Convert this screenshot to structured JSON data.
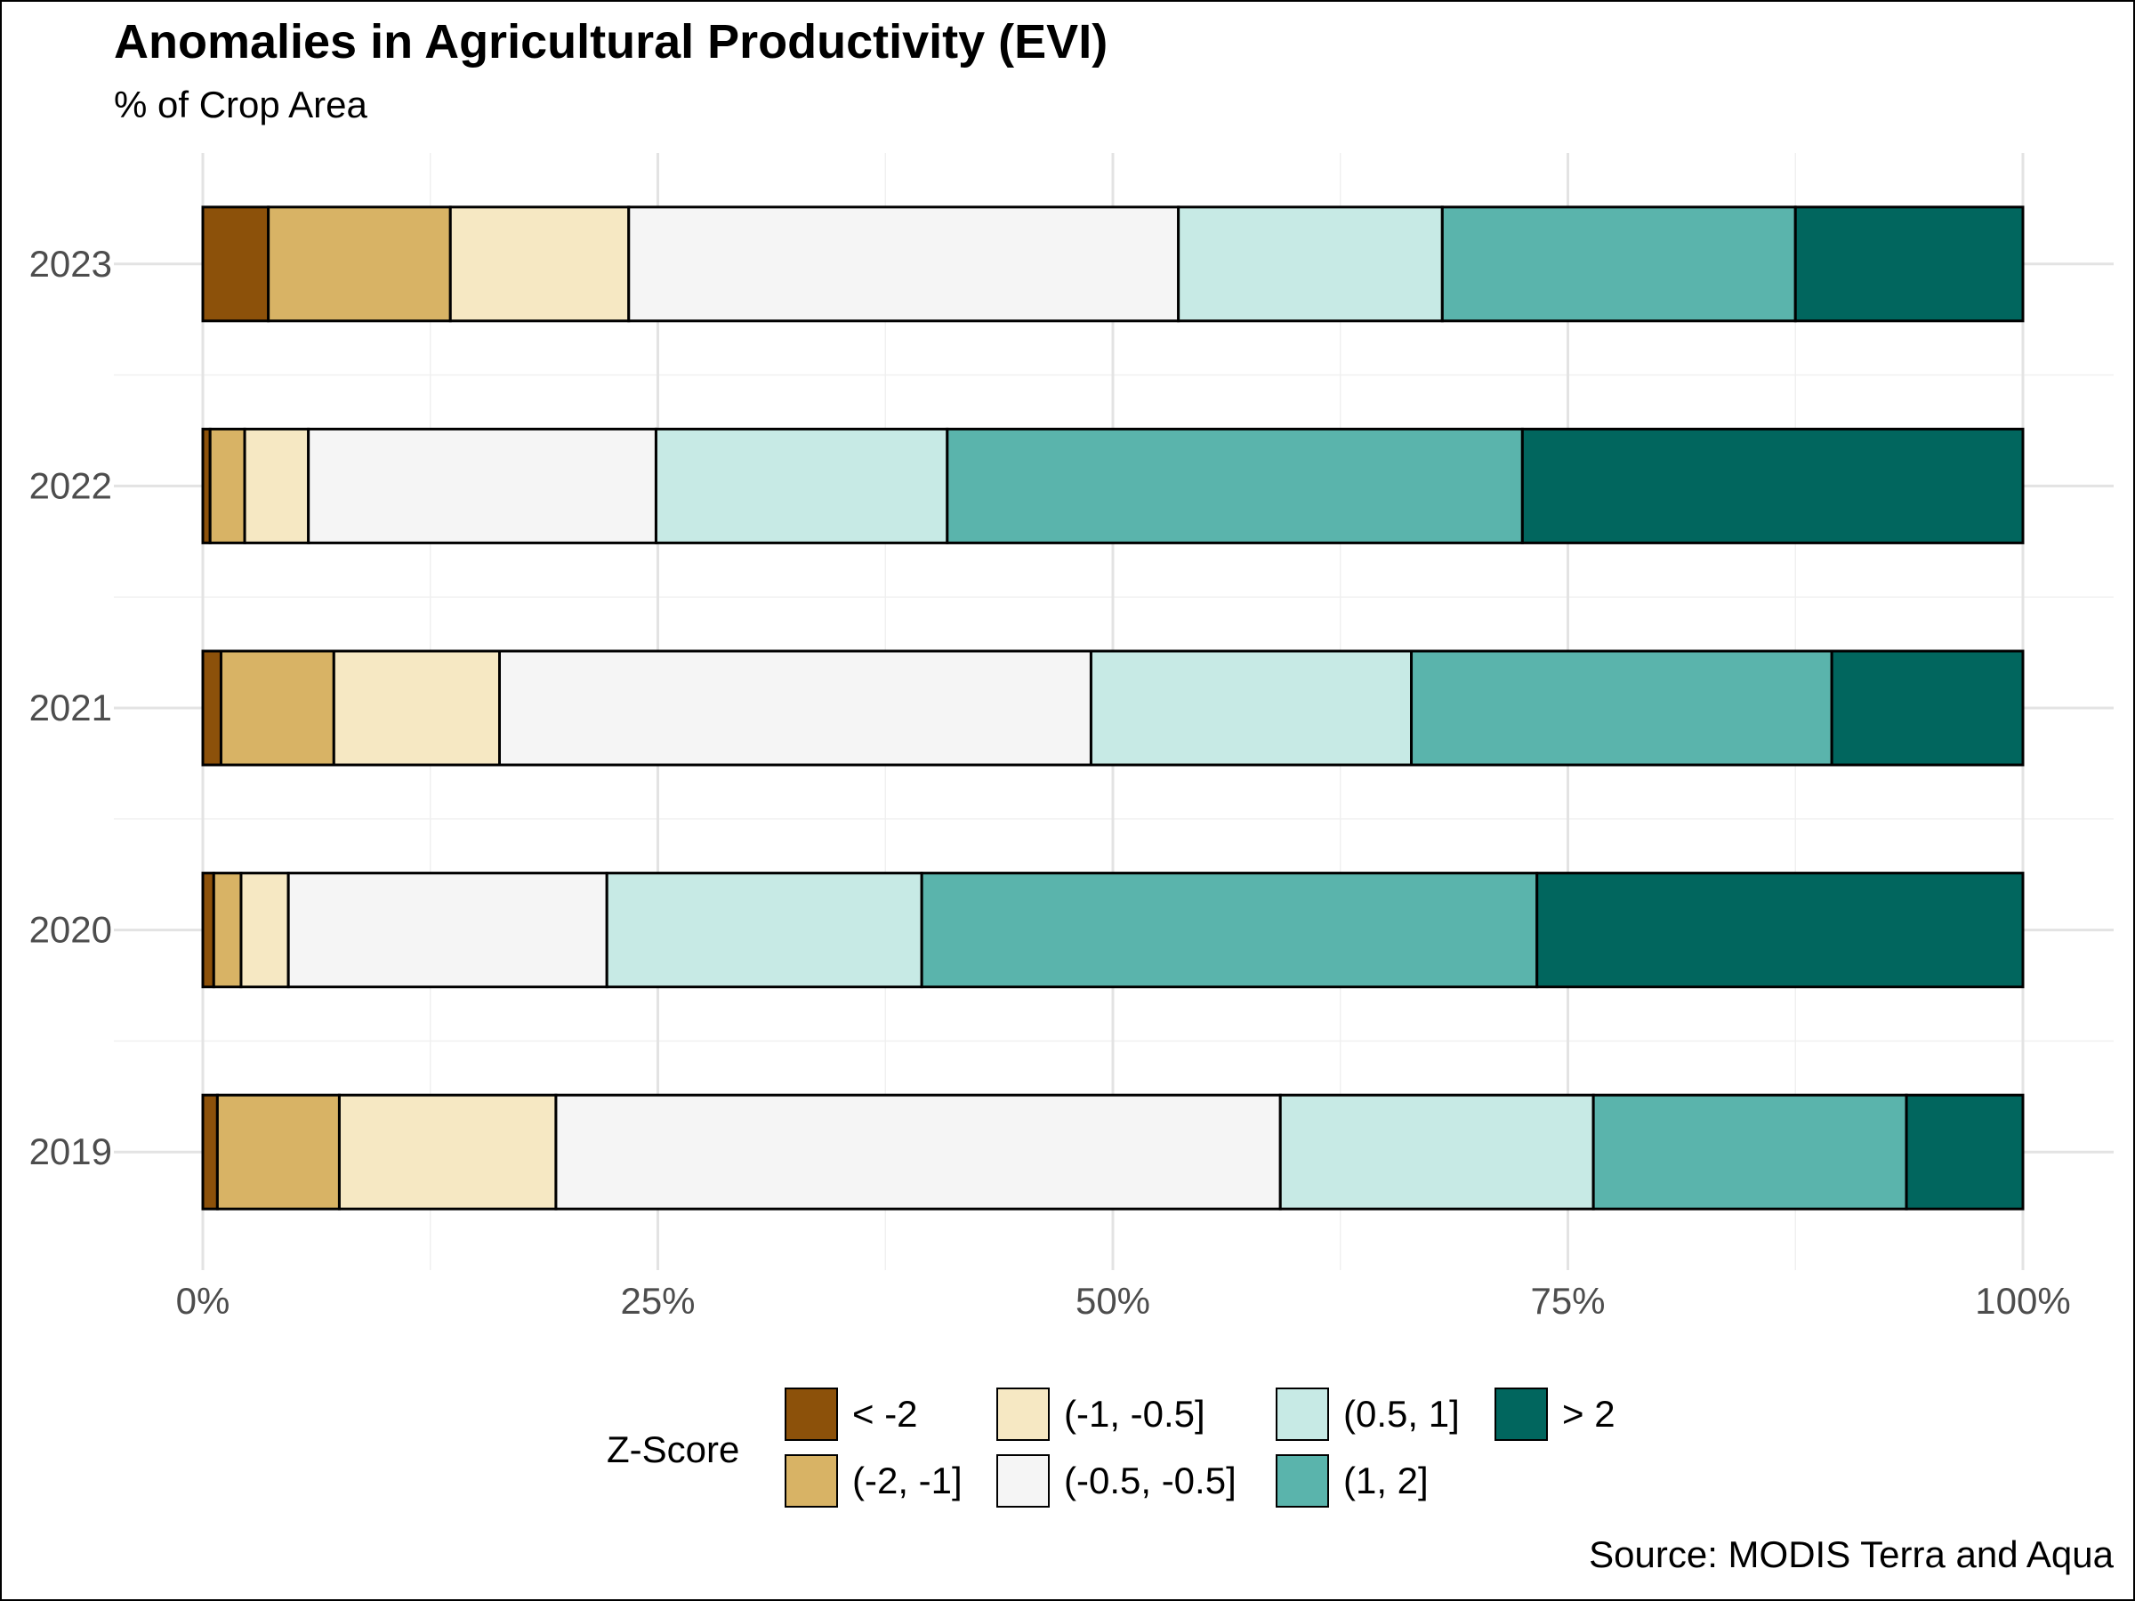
{
  "title": "Anomalies in Agricultural Productivity (EVI)",
  "subtitle": "% of Crop Area",
  "source": "Source: MODIS Terra and Aqua",
  "legend": {
    "title": "Z-Score"
  },
  "chart_data": {
    "type": "bar",
    "orientation": "horizontal",
    "stacked": true,
    "normalized": true,
    "categories": [
      "2019",
      "2020",
      "2021",
      "2022",
      "2023"
    ],
    "series": [
      {
        "name": "< -2",
        "color": "#8C510A",
        "values": [
          0.8,
          0.6,
          1.0,
          0.4,
          3.6
        ]
      },
      {
        "name": "(-2, -1]",
        "color": "#D8B365",
        "values": [
          6.7,
          1.5,
          6.2,
          1.9,
          10.0
        ]
      },
      {
        "name": "(-1, -0.5]",
        "color": "#F6E8C3",
        "values": [
          11.9,
          2.6,
          9.1,
          3.5,
          9.8
        ]
      },
      {
        "name": "(-0.5, -0.5]",
        "color": "#F5F5F5",
        "values": [
          39.8,
          17.5,
          32.5,
          19.1,
          30.2
        ]
      },
      {
        "name": "(0.5, 1]",
        "color": "#C7EAE5",
        "values": [
          17.2,
          17.3,
          17.6,
          16.0,
          14.5
        ]
      },
      {
        "name": "(1, 2]",
        "color": "#5AB4AC",
        "values": [
          17.2,
          33.8,
          23.1,
          31.6,
          19.4
        ]
      },
      {
        "name": "> 2",
        "color": "#01665E",
        "values": [
          6.4,
          26.7,
          10.5,
          27.5,
          12.5
        ]
      }
    ],
    "xlim": [
      0,
      100
    ],
    "xticks": [
      "0%",
      "25%",
      "50%",
      "75%",
      "100%"
    ],
    "xtick_values": [
      0,
      25,
      50,
      75,
      100
    ],
    "xlabel": "",
    "ylabel": "",
    "grid": true,
    "legend_position": "bottom"
  }
}
